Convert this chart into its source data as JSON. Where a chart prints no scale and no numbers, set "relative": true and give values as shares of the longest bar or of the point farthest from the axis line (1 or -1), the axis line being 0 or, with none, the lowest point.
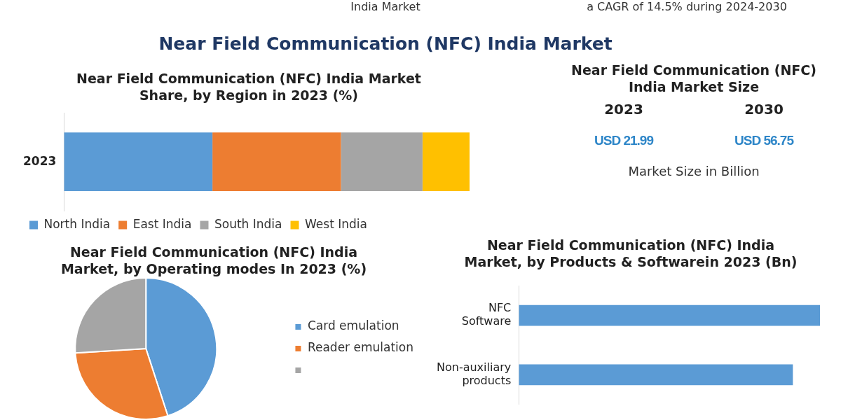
{
  "chart_data": [
    {
      "type": "other",
      "title": "Near Field Communication (NFC) India Market",
      "annotations": [
        "India Market",
        "a CAGR of 14.5% during 2024-2030"
      ]
    },
    {
      "type": "bar",
      "title": "Near Field Communication (NFC) India Market Share, by Region in 2023 (%)",
      "orientation": "horizontal",
      "stacked": true,
      "relative": true,
      "categories": [
        "2023"
      ],
      "legend": "bottom",
      "series": [
        {
          "name": "North India",
          "color": "#5b9bd5",
          "values": [
            0.366
          ]
        },
        {
          "name": "East India",
          "color": "#ed7d31",
          "values": [
            0.317
          ]
        },
        {
          "name": "South India",
          "color": "#a5a5a5",
          "values": [
            0.201
          ]
        },
        {
          "name": "West India",
          "color": "#ffc000",
          "values": [
            0.116
          ]
        }
      ]
    },
    {
      "type": "other",
      "title": "Near Field Communication (NFC) India Market Size",
      "categories": [
        "2023",
        "2030"
      ],
      "values": [
        21.99,
        56.75
      ],
      "value_labels": [
        "USD 21.99",
        "USD 56.75"
      ],
      "annotations": [
        "Market Size in Billion"
      ]
    },
    {
      "type": "pie",
      "title": "Near Field Communication (NFC) India Market, by Operating modes In 2023 (%)",
      "categories": [
        "Card emulation",
        "Reader emulation",
        null
      ],
      "values": [
        45,
        29,
        26
      ],
      "colors": [
        "#5b9bd5",
        "#ed7d31",
        "#a5a5a5"
      ],
      "legend": "right"
    },
    {
      "type": "bar",
      "title": "Near Field Communication (NFC) India Market, by Products & Softwarein 2023 (Bn)",
      "orientation": "horizontal",
      "relative": true,
      "categories": [
        "NFC Software",
        "Non-auxiliary products"
      ],
      "values": [
        1,
        0.91
      ],
      "color": "#5b9bd5"
    }
  ]
}
